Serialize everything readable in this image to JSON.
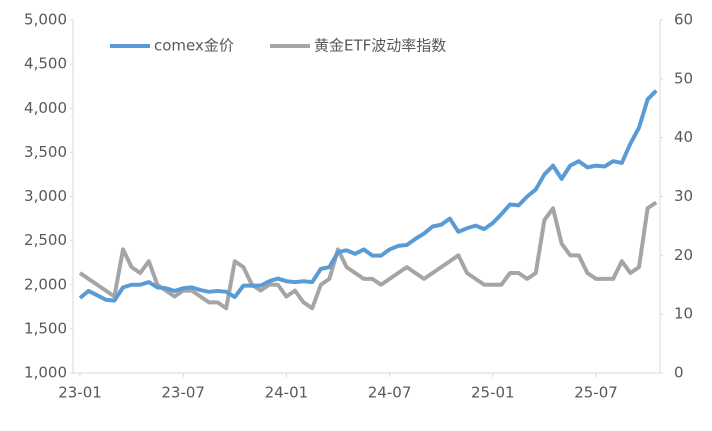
{
  "chart_data": {
    "type": "line",
    "categories": [
      "23-01",
      null,
      null,
      null,
      null,
      null,
      null,
      null,
      null,
      null,
      null,
      null,
      "23-07",
      null,
      null,
      null,
      null,
      null,
      null,
      null,
      null,
      null,
      null,
      null,
      "24-01",
      null,
      null,
      null,
      null,
      null,
      null,
      null,
      null,
      null,
      null,
      null,
      "24-07",
      null,
      null,
      null,
      null,
      null,
      null,
      null,
      null,
      null,
      null,
      null,
      "25-01",
      null,
      null,
      null,
      null,
      null,
      null,
      null,
      null,
      null,
      null,
      null,
      "25-07",
      null,
      null,
      null,
      null,
      null,
      null,
      null
    ],
    "series": [
      {
        "name": "comex金价",
        "color": "#5b9bd5",
        "values": [
          1850,
          1930,
          1880,
          1830,
          1820,
          1970,
          2000,
          2000,
          2030,
          1970,
          1960,
          1930,
          1960,
          1970,
          1940,
          1920,
          1930,
          1920,
          1860,
          1990,
          1990,
          1990,
          2040,
          2070,
          2040,
          2030,
          2040,
          2030,
          2180,
          2200,
          2370,
          2390,
          2350,
          2400,
          2330,
          2330,
          2400,
          2440,
          2450,
          2520,
          2580,
          2660,
          2680,
          2750,
          2600,
          2640,
          2670,
          2630,
          2700,
          2800,
          2910,
          2900,
          3000,
          3080,
          3250,
          3350,
          3200,
          3350,
          3400,
          3330,
          3350,
          3340,
          3400,
          3380,
          3600,
          3780,
          4100,
          4200
        ]
      },
      {
        "name": "黄金ETF波动率指数",
        "color": "#a5a5a5",
        "axis": "y2",
        "values": [
          17,
          16,
          15,
          14,
          13,
          21,
          18,
          17,
          19,
          15,
          14,
          13,
          14,
          14,
          13,
          12,
          12,
          11,
          19,
          18,
          15,
          14,
          15,
          15,
          13,
          14,
          12,
          11,
          15,
          16,
          21,
          18,
          17,
          16,
          16,
          15,
          16,
          17,
          18,
          17,
          16,
          17,
          18,
          19,
          20,
          17,
          16,
          15,
          15,
          15,
          17,
          17,
          16,
          17,
          26,
          28,
          22,
          20,
          20,
          17,
          16,
          16,
          16,
          19,
          17,
          18,
          28,
          29
        ]
      }
    ],
    "ylim": [
      1000,
      5000
    ],
    "yticks": [
      {
        "value": 1000,
        "label": "1,000"
      },
      {
        "value": 1500,
        "label": "1,500"
      },
      {
        "value": 2000,
        "label": "2,000"
      },
      {
        "value": 2500,
        "label": "2,500"
      },
      {
        "value": 3000,
        "label": "3,000"
      },
      {
        "value": 3500,
        "label": "3,500"
      },
      {
        "value": 4000,
        "label": "4,000"
      },
      {
        "value": 4500,
        "label": "4,500"
      },
      {
        "value": 5000,
        "label": "5,000"
      }
    ],
    "y2lim": [
      0,
      60
    ],
    "y2ticks": [
      0,
      10,
      20,
      30,
      40,
      50,
      60
    ],
    "legend": "top"
  }
}
